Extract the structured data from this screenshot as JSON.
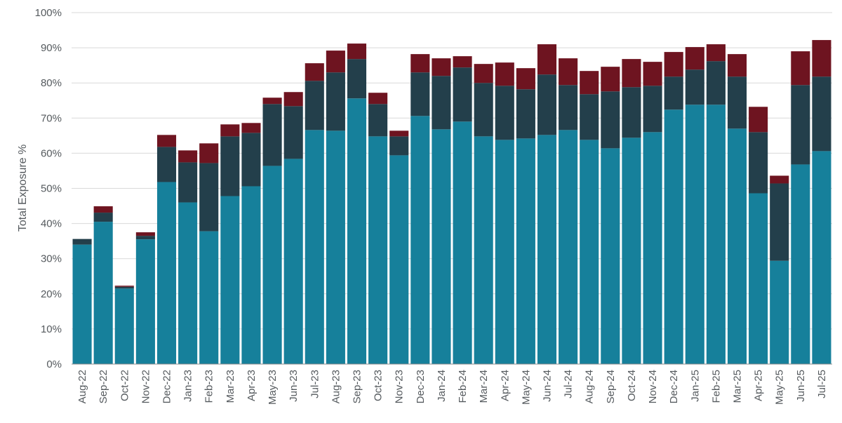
{
  "chart_data": {
    "type": "bar",
    "stacked": true,
    "ylabel": "Total Exposure %",
    "xlabel": "",
    "ylim": [
      0,
      100
    ],
    "yticks": [
      "0%",
      "10%",
      "20%",
      "30%",
      "40%",
      "50%",
      "60%",
      "70%",
      "80%",
      "90%",
      "100%"
    ],
    "grid": true,
    "legend": "none",
    "categories": [
      "Aug-22",
      "Sep-22",
      "Oct-22",
      "Nov-22",
      "Dec-22",
      "Jan-23",
      "Feb-23",
      "Mar-23",
      "Apr-23",
      "May-23",
      "Jun-23",
      "Jul-23",
      "Aug-23",
      "Sep-23",
      "Oct-23",
      "Nov-23",
      "Dec-23",
      "Jan-24",
      "Feb-24",
      "Mar-24",
      "Apr-24",
      "May-24",
      "Jun-24",
      "Jul-24",
      "Aug-24",
      "Sep-24",
      "Oct-24",
      "Nov-24",
      "Dec-24",
      "Jan-25",
      "Feb-25",
      "Mar-25",
      "Apr-25",
      "May-25",
      "Jun-25",
      "Jul-25"
    ],
    "series": [
      {
        "color": "#16809b",
        "values": [
          34,
          40.5,
          21.5,
          35.5,
          51.8,
          46,
          37.8,
          47.8,
          50.6,
          56.4,
          58.4,
          66.6,
          66.4,
          75.6,
          64.8,
          59.4,
          70.6,
          66.8,
          69,
          64.8,
          63.8,
          64.2,
          65.2,
          66.6,
          63.8,
          61.4,
          64.4,
          66,
          72.4,
          73.8,
          73.8,
          67,
          48.6,
          29.4,
          56.8,
          60.6
        ]
      },
      {
        "color": "#233f4b",
        "values": [
          1.6,
          2.6,
          0.5,
          1,
          10,
          11.4,
          19.4,
          17,
          15.2,
          17.6,
          15,
          14,
          16.6,
          11.2,
          9.2,
          5.4,
          12.4,
          15.2,
          15.4,
          15.2,
          15.4,
          14,
          17.2,
          12.8,
          13,
          16.2,
          14.4,
          13.2,
          9.4,
          10,
          12.4,
          14.8,
          17.4,
          22,
          22.6,
          21.2
        ]
      },
      {
        "color": "#6e1420",
        "values": [
          0,
          1.8,
          0.3,
          1,
          3.4,
          3.4,
          5.6,
          3.4,
          2.8,
          1.8,
          4,
          5,
          6.2,
          4.4,
          3.2,
          1.6,
          5.2,
          5,
          3.2,
          5.4,
          6.6,
          6,
          8.6,
          7.6,
          6.6,
          7,
          8,
          6.8,
          7,
          6.4,
          4.8,
          6.4,
          7.2,
          2.2,
          9.6,
          10.4
        ]
      }
    ]
  }
}
